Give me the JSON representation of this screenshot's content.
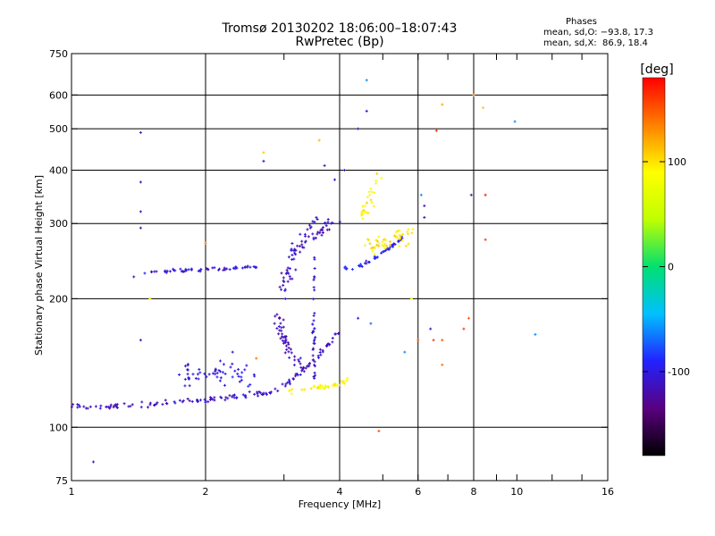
{
  "header": {
    "title": "Tromsø 20130202 18:06:00–18:07:43",
    "subtitle": "RwPretec (Bp)",
    "phase_label": "Phases",
    "stats_o": "mean, sd,O: −93.8, 17.3",
    "stats_x": "mean, sd,X:  86.9, 18.4"
  },
  "colorbar": {
    "label": "[deg]",
    "ticks": [
      {
        "value": 100,
        "label": "100"
      },
      {
        "value": 0,
        "label": "0"
      },
      {
        "value": -100,
        "label": "-100"
      }
    ],
    "range": [
      -180,
      180
    ],
    "colors": [
      "#000000",
      "#5a0080",
      "#2222ff",
      "#00c0ff",
      "#00e070",
      "#c0ff00",
      "#ffff00",
      "#ff8000",
      "#ff0000"
    ]
  },
  "chart_data": {
    "type": "scatter",
    "xlabel": "Frequency [MHz]",
    "ylabel": "Stationary phase Virtual Height [km]",
    "x_scale": "log",
    "y_scale": "log",
    "xlim": [
      1,
      16
    ],
    "ylim": [
      75,
      750
    ],
    "grid": true,
    "x_ticks": [
      {
        "value": 1,
        "label": "1"
      },
      {
        "value": 2,
        "label": "2"
      },
      {
        "value": 4,
        "label": "4"
      },
      {
        "value": 6,
        "label": "6"
      },
      {
        "value": 8,
        "label": "8"
      },
      {
        "value": 10,
        "label": "10"
      },
      {
        "value": 16,
        "label": "16"
      }
    ],
    "x_grid": [
      2,
      4,
      6,
      8
    ],
    "x_minor": [
      3,
      5,
      7,
      9,
      12,
      14
    ],
    "y_ticks": [
      {
        "value": 75,
        "label": "75"
      },
      {
        "value": 100,
        "label": "100"
      },
      {
        "value": 200,
        "label": "200"
      },
      {
        "value": 300,
        "label": "300"
      },
      {
        "value": 400,
        "label": "400"
      },
      {
        "value": 500,
        "label": "500"
      },
      {
        "value": 600,
        "label": "600"
      },
      {
        "value": 750,
        "label": "750"
      }
    ],
    "y_grid": [
      100,
      200,
      300,
      400,
      500,
      600
    ],
    "traces": [
      {
        "points": [
          [
            1.0,
            113
          ],
          [
            1.05,
            112
          ],
          [
            1.1,
            111
          ],
          [
            1.2,
            112
          ],
          [
            1.3,
            113
          ],
          [
            1.4,
            113
          ],
          [
            1.5,
            113
          ],
          [
            1.6,
            114
          ],
          [
            1.7,
            114
          ],
          [
            1.8,
            115
          ],
          [
            1.9,
            115
          ],
          [
            2.0,
            116
          ],
          [
            2.1,
            116
          ],
          [
            2.2,
            117
          ],
          [
            2.3,
            117
          ],
          [
            2.4,
            118
          ],
          [
            2.5,
            119
          ],
          [
            2.6,
            119
          ],
          [
            2.7,
            120
          ],
          [
            2.8,
            121
          ],
          [
            2.9,
            123
          ],
          [
            3.0,
            125
          ],
          [
            3.1,
            128
          ],
          [
            3.2,
            132
          ],
          [
            3.3,
            136
          ],
          [
            3.4,
            140
          ],
          [
            3.5,
            144
          ],
          [
            3.6,
            148
          ],
          [
            3.7,
            153
          ],
          [
            3.8,
            158
          ],
          [
            3.9,
            163
          ],
          [
            4.0,
            168
          ]
        ],
        "phase": -110,
        "count": 150,
        "spread": 0.012
      },
      {
        "points": [
          [
            3.0,
            121
          ],
          [
            3.2,
            122
          ],
          [
            3.4,
            123
          ],
          [
            3.6,
            124
          ],
          [
            3.8,
            125
          ],
          [
            4.0,
            127
          ],
          [
            4.2,
            129
          ]
        ],
        "phase": 95,
        "count": 40,
        "spread": 0.012
      },
      {
        "points": [
          [
            1.45,
            230
          ],
          [
            1.6,
            232
          ],
          [
            1.8,
            233
          ],
          [
            2.0,
            234
          ],
          [
            2.2,
            235
          ],
          [
            2.4,
            237
          ],
          [
            2.6,
            238
          ]
        ],
        "phase": -105,
        "count": 55,
        "spread": 0.007
      },
      {
        "points": [
          [
            4.1,
            236
          ],
          [
            4.3,
            237
          ],
          [
            4.5,
            240
          ],
          [
            4.7,
            246
          ],
          [
            4.9,
            253
          ],
          [
            5.1,
            260
          ],
          [
            5.3,
            268
          ],
          [
            5.5,
            276
          ],
          [
            5.7,
            285
          ]
        ],
        "phase": -95,
        "count": 45,
        "spread": 0.008
      },
      {
        "points": [
          [
            4.6,
            265
          ],
          [
            4.8,
            267
          ],
          [
            5.0,
            270
          ],
          [
            5.2,
            273
          ],
          [
            5.4,
            277
          ],
          [
            5.6,
            280
          ],
          [
            5.8,
            283
          ]
        ],
        "phase": 100,
        "count": 50,
        "spread": 0.035
      },
      {
        "points": [
          [
            3.0,
            210
          ],
          [
            3.1,
            240
          ],
          [
            3.2,
            262
          ],
          [
            3.3,
            275
          ],
          [
            3.4,
            283
          ],
          [
            3.5,
            290
          ],
          [
            3.6,
            293
          ],
          [
            3.7,
            298
          ],
          [
            3.8,
            302
          ],
          [
            3.9,
            306
          ]
        ],
        "phase": -112,
        "count": 80,
        "spread": 0.045
      },
      {
        "points": [
          [
            2.9,
            180
          ],
          [
            3.0,
            160
          ],
          [
            3.1,
            150
          ],
          [
            3.2,
            145
          ],
          [
            3.3,
            140
          ]
        ],
        "phase": -115,
        "count": 45,
        "spread": 0.04
      },
      {
        "points": [
          [
            1.7,
            130
          ],
          [
            1.9,
            135
          ],
          [
            2.1,
            138
          ],
          [
            2.3,
            133
          ],
          [
            2.5,
            132
          ],
          [
            2.7,
            130
          ]
        ],
        "phase": -100,
        "count": 55,
        "spread": 0.05
      },
      {
        "points": [
          [
            3.5,
            130
          ],
          [
            3.5,
            150
          ],
          [
            3.5,
            170
          ],
          [
            3.5,
            190
          ],
          [
            3.5,
            210
          ],
          [
            3.5,
            230
          ],
          [
            3.5,
            250
          ]
        ],
        "phase": -105,
        "count": 35,
        "spread": 0.01
      },
      {
        "points": [
          [
            4.5,
            310
          ],
          [
            4.6,
            330
          ],
          [
            4.7,
            350
          ],
          [
            4.8,
            370
          ],
          [
            4.9,
            390
          ]
        ],
        "phase": 90,
        "count": 25,
        "spread": 0.04
      }
    ],
    "outliers": [
      {
        "x": 1.12,
        "y": 83,
        "phase": -100
      },
      {
        "x": 1.43,
        "y": 490,
        "phase": -115
      },
      {
        "x": 1.43,
        "y": 375,
        "phase": -115
      },
      {
        "x": 1.43,
        "y": 320,
        "phase": -110
      },
      {
        "x": 1.43,
        "y": 293,
        "phase": -120
      },
      {
        "x": 1.43,
        "y": 160,
        "phase": -115
      },
      {
        "x": 1.38,
        "y": 225,
        "phase": -110
      },
      {
        "x": 1.5,
        "y": 200,
        "phase": 95
      },
      {
        "x": 2.7,
        "y": 440,
        "phase": 110
      },
      {
        "x": 2.7,
        "y": 420,
        "phase": -110
      },
      {
        "x": 3.6,
        "y": 470,
        "phase": 115
      },
      {
        "x": 3.7,
        "y": 410,
        "phase": -115
      },
      {
        "x": 3.9,
        "y": 380,
        "phase": -110
      },
      {
        "x": 4.1,
        "y": 400,
        "phase": -110
      },
      {
        "x": 4.4,
        "y": 500,
        "phase": -115
      },
      {
        "x": 4.6,
        "y": 550,
        "phase": -120
      },
      {
        "x": 4.6,
        "y": 650,
        "phase": -60
      },
      {
        "x": 4.9,
        "y": 98,
        "phase": 150
      },
      {
        "x": 4.4,
        "y": 180,
        "phase": -110
      },
      {
        "x": 4.7,
        "y": 175,
        "phase": -70
      },
      {
        "x": 5.8,
        "y": 200,
        "phase": 90
      },
      {
        "x": 6.1,
        "y": 350,
        "phase": -60
      },
      {
        "x": 6.2,
        "y": 330,
        "phase": -115
      },
      {
        "x": 6.2,
        "y": 310,
        "phase": -120
      },
      {
        "x": 6.4,
        "y": 170,
        "phase": -110
      },
      {
        "x": 6.5,
        "y": 160,
        "phase": 160
      },
      {
        "x": 6.8,
        "y": 160,
        "phase": 150
      },
      {
        "x": 6.8,
        "y": 140,
        "phase": 140
      },
      {
        "x": 6.6,
        "y": 495,
        "phase": 165
      },
      {
        "x": 6.8,
        "y": 570,
        "phase": 120
      },
      {
        "x": 7.6,
        "y": 170,
        "phase": 160
      },
      {
        "x": 7.8,
        "y": 180,
        "phase": 150
      },
      {
        "x": 7.9,
        "y": 350,
        "phase": -115
      },
      {
        "x": 8.5,
        "y": 350,
        "phase": 170
      },
      {
        "x": 8.5,
        "y": 275,
        "phase": 160
      },
      {
        "x": 8.4,
        "y": 560,
        "phase": 110
      },
      {
        "x": 8.0,
        "y": 600,
        "phase": 130
      },
      {
        "x": 9.9,
        "y": 520,
        "phase": -60
      },
      {
        "x": 11.0,
        "y": 165,
        "phase": -60
      },
      {
        "x": 5.6,
        "y": 150,
        "phase": -60
      },
      {
        "x": 6.0,
        "y": 160,
        "phase": 150
      },
      {
        "x": 2.0,
        "y": 270,
        "phase": 140
      },
      {
        "x": 2.3,
        "y": 150,
        "phase": -110
      },
      {
        "x": 2.6,
        "y": 145,
        "phase": 140
      }
    ]
  }
}
